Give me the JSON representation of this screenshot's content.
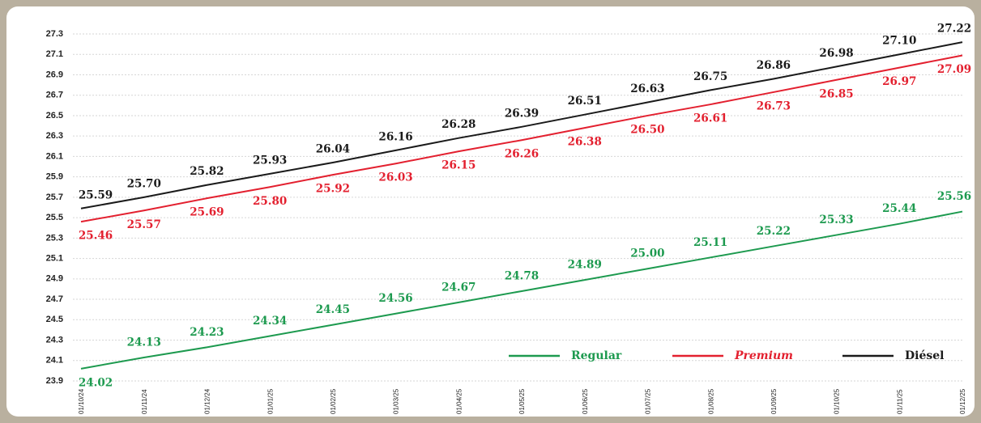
{
  "chart_data": {
    "type": "line",
    "categories": [
      "01/10/24",
      "01/11/24",
      "01/12/24",
      "01/01/25",
      "01/02/25",
      "01/03/25",
      "01/04/25",
      "01/05/25",
      "01/06/25",
      "01/07/25",
      "01/08/25",
      "01/09/25",
      "01/10/25",
      "01/11/25",
      "01/12/25"
    ],
    "series": [
      {
        "name": "Regular",
        "color": "#1d9a4f",
        "values": [
          24.02,
          24.13,
          24.23,
          24.34,
          24.45,
          24.56,
          24.67,
          24.78,
          24.89,
          25.0,
          25.11,
          25.22,
          25.33,
          25.44,
          25.56
        ],
        "value_labels": [
          "24.02",
          "24.13",
          "24.23",
          "24.34",
          "24.45",
          "24.56",
          "24.67",
          "24.78",
          "24.89",
          "25.00",
          "25.11",
          "25.22",
          "25.33",
          "25.44",
          "25.56"
        ]
      },
      {
        "name": "Premium",
        "color": "#e3202f",
        "values": [
          25.46,
          25.57,
          25.69,
          25.8,
          25.92,
          26.03,
          26.15,
          26.26,
          26.38,
          26.5,
          26.61,
          26.73,
          26.85,
          26.97,
          27.09
        ],
        "value_labels": [
          "25.46",
          "25.57",
          "25.69",
          "25.80",
          "25.92",
          "26.03",
          "26.15",
          "26.26",
          "26.38",
          "26.50",
          "26.61",
          "26.73",
          "26.85",
          "26.97",
          "27.09"
        ]
      },
      {
        "name": "Diésel",
        "color": "#1a1a1a",
        "values": [
          25.59,
          25.7,
          25.82,
          25.93,
          26.04,
          26.16,
          26.28,
          26.39,
          26.51,
          26.63,
          26.75,
          26.86,
          26.98,
          27.1,
          27.22
        ],
        "value_labels": [
          "25.59",
          "25.70",
          "25.82",
          "25.93",
          "26.04",
          "26.16",
          "26.28",
          "26.39",
          "26.51",
          "26.63",
          "26.75",
          "26.86",
          "26.98",
          "27.10",
          "27.22"
        ]
      }
    ],
    "ylim": [
      23.9,
      27.3
    ],
    "yticks": [
      23.9,
      24.1,
      24.3,
      24.5,
      24.7,
      24.9,
      25.1,
      25.3,
      25.5,
      25.7,
      25.9,
      26.1,
      26.3,
      26.5,
      26.7,
      26.9,
      27.1,
      27.3
    ],
    "grid": true,
    "legend": "lower right"
  }
}
